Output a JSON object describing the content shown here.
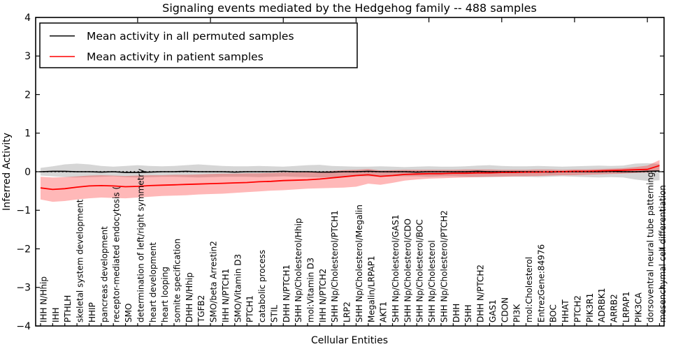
{
  "chart_data": {
    "type": "line",
    "title": "Signaling events mediated by the Hedgehog family -- 488 samples",
    "xlabel": "Cellular Entities",
    "ylabel": "Inferred Activity",
    "ylim": [
      -4,
      4
    ],
    "yticks": [
      4,
      3,
      2,
      1,
      0,
      -1,
      -2,
      -3,
      -4
    ],
    "grid": false,
    "legend_position": "upper left",
    "zero_line": {
      "style": "dotted",
      "color": "#000000",
      "y": 0
    },
    "categories": [
      "IHH N/Hhip",
      "IHH",
      "PTHLH",
      "skeletal system development",
      "HHIP",
      "pancreas development",
      "receptor-mediated endocytosis (",
      "SMO",
      "determination of left/right symmetry",
      "heart development",
      "heart looping",
      "somite specification",
      "DHH N/Hhip",
      "TGFB2",
      "SMO/beta Arrestin2",
      "IHH N/PTCH1",
      "SMO/Vitamin D3",
      "PTCH1",
      "catabolic process",
      "STIL",
      "DHH N/PTCH1",
      "SHH Np/Cholesterol/Hhip",
      "mol:Vitamin D3",
      "IHH N/PTCH2",
      "SHH Np/Cholesterol/PTCH1",
      "LRP2",
      "SHH Np/Cholesterol/Megalin",
      "Megalin/LRPAP1",
      "AKT1",
      "SHH Np/Cholesterol/GAS1",
      "SHH Np/Cholesterol/CDO",
      "SHH Np/Cholesterol/BOC",
      "SHH Np/Cholesterol",
      "SHH Np/Cholesterol/PTCH2",
      "DHH",
      "SHH",
      "DHH N/PTCH2",
      "GAS1",
      "CDON",
      "PI3K",
      "mol:Cholesterol",
      "EntrezGene:84976",
      "BOC",
      "HHAT",
      "PTCH2",
      "PIK3R1",
      "ADRBK1",
      "ARRB2",
      "LRPAP1",
      "PIK3CA",
      "dorsoventral neural tube patterning",
      "mesenchymal cell differentiation"
    ],
    "series": [
      {
        "name": "Mean activity in all permuted samples",
        "color": "#000000",
        "band_color": "rgba(0,0,0,0.16)",
        "values": [
          0.0,
          0.01,
          0.01,
          0.0,
          0.0,
          -0.01,
          0.0,
          -0.02,
          -0.02,
          -0.01,
          0.0,
          0.0,
          0.01,
          0.0,
          0.0,
          0.0,
          -0.01,
          0.0,
          0.0,
          0.0,
          0.01,
          0.0,
          0.0,
          -0.01,
          -0.01,
          0.0,
          0.0,
          0.01,
          0.0,
          0.0,
          0.0,
          -0.01,
          0.0,
          0.0,
          0.0,
          0.0,
          0.01,
          0.0,
          0.0,
          0.0,
          0.0,
          0.0,
          -0.01,
          0.0,
          0.0,
          0.0,
          0.0,
          0.01,
          0.0,
          0.0,
          0.01,
          0.02
        ],
        "band_upper": [
          0.1,
          0.14,
          0.19,
          0.21,
          0.19,
          0.15,
          0.13,
          0.15,
          0.17,
          0.15,
          0.14,
          0.15,
          0.17,
          0.19,
          0.17,
          0.15,
          0.14,
          0.14,
          0.15,
          0.14,
          0.13,
          0.15,
          0.17,
          0.18,
          0.15,
          0.14,
          0.13,
          0.13,
          0.14,
          0.13,
          0.12,
          0.13,
          0.14,
          0.13,
          0.13,
          0.14,
          0.16,
          0.17,
          0.15,
          0.14,
          0.14,
          0.15,
          0.14,
          0.13,
          0.14,
          0.15,
          0.16,
          0.15,
          0.16,
          0.21,
          0.22,
          0.2
        ],
        "band_lower": [
          -0.1,
          -0.12,
          -0.14,
          -0.15,
          -0.14,
          -0.13,
          -0.12,
          -0.14,
          -0.15,
          -0.14,
          -0.13,
          -0.13,
          -0.14,
          -0.15,
          -0.14,
          -0.13,
          -0.13,
          -0.13,
          -0.14,
          -0.13,
          -0.12,
          -0.13,
          -0.14,
          -0.15,
          -0.14,
          -0.13,
          -0.12,
          -0.12,
          -0.13,
          -0.12,
          -0.12,
          -0.12,
          -0.13,
          -0.12,
          -0.12,
          -0.13,
          -0.14,
          -0.14,
          -0.13,
          -0.13,
          -0.13,
          -0.14,
          -0.13,
          -0.12,
          -0.13,
          -0.14,
          -0.15,
          -0.14,
          -0.15,
          -0.2,
          -0.24,
          -0.22
        ]
      },
      {
        "name": "Mean activity in patient samples",
        "color": "#ff0000",
        "band_color": "rgba(255,0,0,0.28)",
        "values": [
          -0.42,
          -0.46,
          -0.44,
          -0.4,
          -0.37,
          -0.36,
          -0.37,
          -0.39,
          -0.38,
          -0.36,
          -0.35,
          -0.34,
          -0.33,
          -0.32,
          -0.31,
          -0.3,
          -0.29,
          -0.28,
          -0.26,
          -0.25,
          -0.23,
          -0.22,
          -0.21,
          -0.19,
          -0.16,
          -0.13,
          -0.1,
          -0.08,
          -0.12,
          -0.1,
          -0.07,
          -0.06,
          -0.05,
          -0.05,
          -0.04,
          -0.04,
          -0.03,
          -0.03,
          -0.02,
          -0.02,
          -0.01,
          -0.01,
          0.0,
          0.0,
          0.01,
          0.01,
          0.02,
          0.03,
          0.04,
          0.05,
          0.06,
          0.16
        ],
        "band_upper": [
          -0.13,
          -0.15,
          -0.14,
          -0.12,
          -0.1,
          -0.09,
          -0.1,
          -0.11,
          -0.1,
          -0.09,
          -0.09,
          -0.08,
          -0.08,
          -0.07,
          -0.06,
          -0.05,
          -0.05,
          -0.04,
          -0.04,
          -0.03,
          -0.02,
          -0.02,
          -0.01,
          0.0,
          0.02,
          0.04,
          0.05,
          0.07,
          0.03,
          0.04,
          0.05,
          0.05,
          0.05,
          0.05,
          0.05,
          0.06,
          0.06,
          0.06,
          0.05,
          0.05,
          0.05,
          0.06,
          0.06,
          0.05,
          0.06,
          0.06,
          0.07,
          0.08,
          0.09,
          0.12,
          0.16,
          0.3
        ],
        "band_lower": [
          -0.72,
          -0.78,
          -0.76,
          -0.72,
          -0.69,
          -0.67,
          -0.68,
          -0.69,
          -0.67,
          -0.65,
          -0.63,
          -0.62,
          -0.61,
          -0.59,
          -0.58,
          -0.57,
          -0.55,
          -0.53,
          -0.51,
          -0.49,
          -0.48,
          -0.46,
          -0.44,
          -0.43,
          -0.42,
          -0.41,
          -0.39,
          -0.31,
          -0.34,
          -0.29,
          -0.23,
          -0.2,
          -0.18,
          -0.17,
          -0.16,
          -0.15,
          -0.14,
          -0.13,
          -0.13,
          -0.12,
          -0.12,
          -0.11,
          -0.1,
          -0.09,
          -0.09,
          -0.08,
          -0.07,
          -0.06,
          -0.05,
          -0.03,
          -0.02,
          0.03
        ]
      }
    ]
  }
}
